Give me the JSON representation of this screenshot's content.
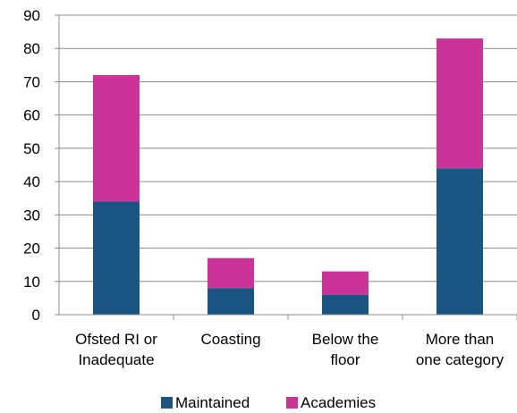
{
  "chart_data": {
    "type": "bar",
    "stacked": true,
    "categories": [
      [
        "Ofsted RI or",
        "Inadequate"
      ],
      [
        "Coasting"
      ],
      [
        "Below the",
        "floor"
      ],
      [
        "More than",
        "one category"
      ]
    ],
    "series": [
      {
        "name": "Maintained",
        "values": [
          34,
          8,
          6,
          44
        ],
        "color": "#1a5482"
      },
      {
        "name": "Academies",
        "values": [
          38,
          9,
          7,
          39
        ],
        "color": "#cc3399"
      }
    ],
    "ylim": [
      0,
      90
    ],
    "yticks": [
      0,
      10,
      20,
      30,
      40,
      50,
      60,
      70,
      80,
      90
    ],
    "grid": true,
    "legend_position": "bottom",
    "title": "",
    "xlabel": "",
    "ylabel": ""
  }
}
